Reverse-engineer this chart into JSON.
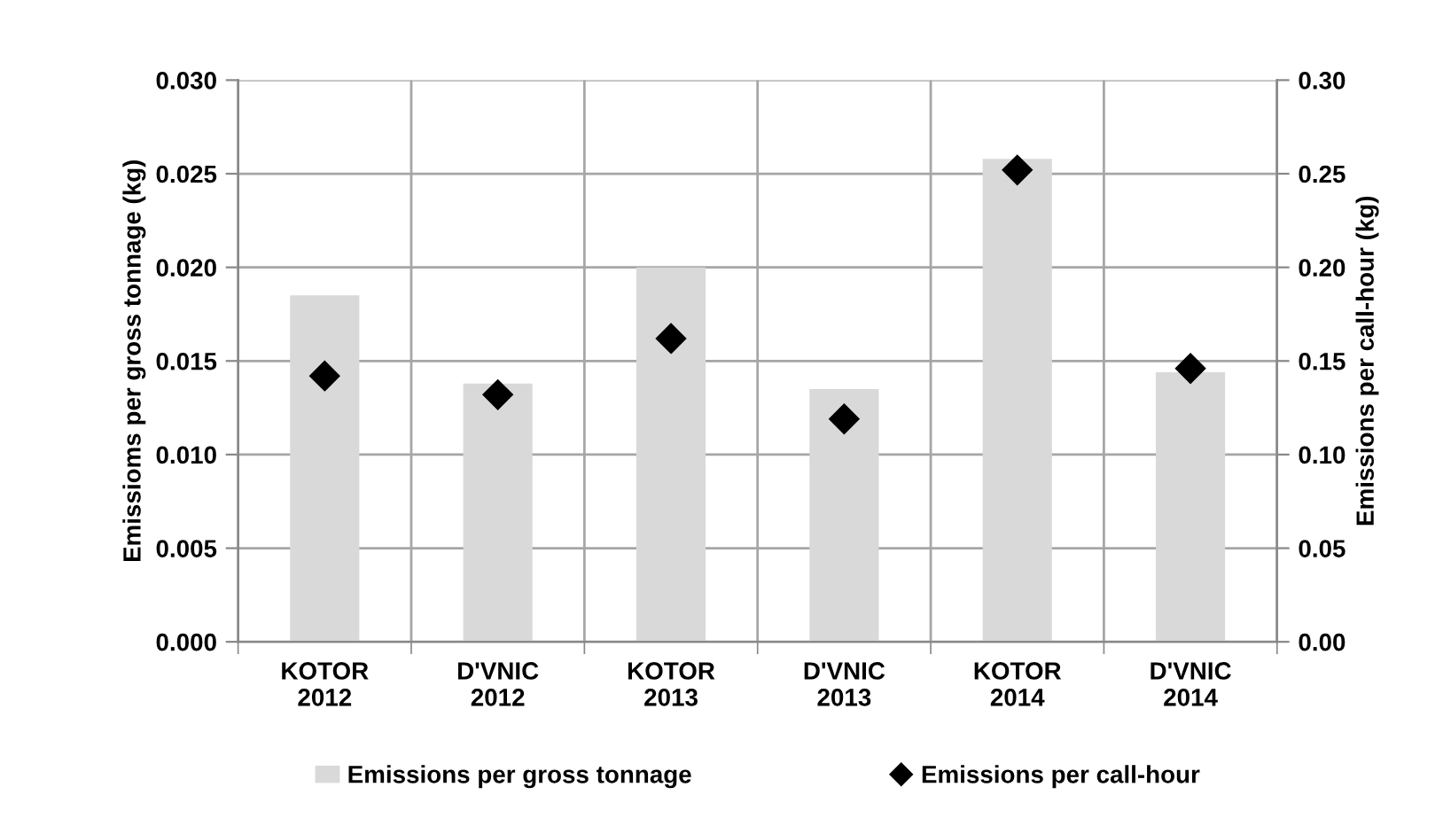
{
  "chart_data": {
    "type": "bar",
    "categories": [
      "KOTOR\n2012",
      "D'VNIC\n2012",
      "KOTOR\n2013",
      "D'VNIC\n2013",
      "KOTOR\n2014",
      "D'VNIC\n2014"
    ],
    "ylabel": "Emissioms per gross tonnage (kg)",
    "y2label": "Emissions per call-hour (kg)",
    "series": [
      {
        "name": "Emissions per gross tonnage",
        "color": "#d9d9d9",
        "values": [
          0.0185,
          0.0138,
          0.02,
          0.0135,
          0.0258,
          0.0144
        ]
      },
      {
        "name": "Emissions per call-hour",
        "type": "scatter",
        "axis": "y2",
        "marker": "diamond",
        "color": "#000000",
        "values": [
          0.142,
          0.132,
          0.162,
          0.119,
          0.252,
          0.146
        ]
      }
    ],
    "ylim": [
      0,
      0.03
    ],
    "yticks": [
      {
        "value": 0,
        "label": "0.000"
      },
      {
        "value": 0.005,
        "label": "0.005"
      },
      {
        "value": 0.01,
        "label": "0.010"
      },
      {
        "value": 0.015,
        "label": "0.015"
      },
      {
        "value": 0.02,
        "label": "0.020"
      },
      {
        "value": 0.025,
        "label": "0.025"
      },
      {
        "value": 0.03,
        "label": "0.030"
      }
    ],
    "y2lim": [
      0,
      0.3
    ],
    "y2ticks": [
      {
        "value": 0,
        "label": "0.00"
      },
      {
        "value": 0.05,
        "label": "0.05"
      },
      {
        "value": 0.1,
        "label": "0.10"
      },
      {
        "value": 0.15,
        "label": "0.15"
      },
      {
        "value": 0.2,
        "label": "0.20"
      },
      {
        "value": 0.25,
        "label": "0.25"
      },
      {
        "value": 0.3,
        "label": "0.30"
      }
    ],
    "grid": true,
    "legend": "bottom"
  }
}
